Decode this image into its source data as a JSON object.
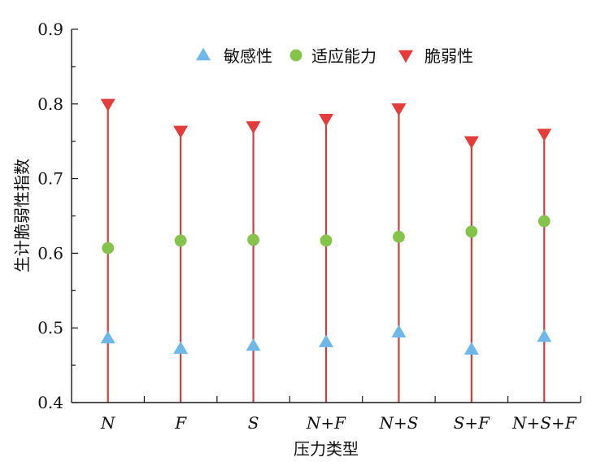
{
  "chart_data": {
    "type": "scatter",
    "xlabel": "压力类型",
    "ylabel": "生计脆弱性指数",
    "categories": [
      "N",
      "F",
      "S",
      "N+F",
      "N+S",
      "S+F",
      "N+S+F"
    ],
    "ylim": [
      0.4,
      0.9
    ],
    "yticks": [
      "0.4",
      "0.5",
      "0.6",
      "0.7",
      "0.8",
      "0.9"
    ],
    "grid": false,
    "legend_position": "top-center",
    "series": [
      {
        "name": "敏感性",
        "marker": "triangle-up",
        "color": "#6db8e8",
        "values": [
          0.486,
          0.472,
          0.476,
          0.481,
          0.494,
          0.471,
          0.488
        ]
      },
      {
        "name": "适应能力",
        "marker": "circle",
        "color": "#86c34a",
        "values": [
          0.607,
          0.617,
          0.618,
          0.617,
          0.622,
          0.629,
          0.643
        ]
      },
      {
        "name": "脆弱性",
        "marker": "triangle-down",
        "color": "#e43b3b",
        "values": [
          0.8,
          0.764,
          0.77,
          0.78,
          0.794,
          0.75,
          0.76
        ]
      }
    ],
    "stem_color": "#cf3e3e"
  }
}
